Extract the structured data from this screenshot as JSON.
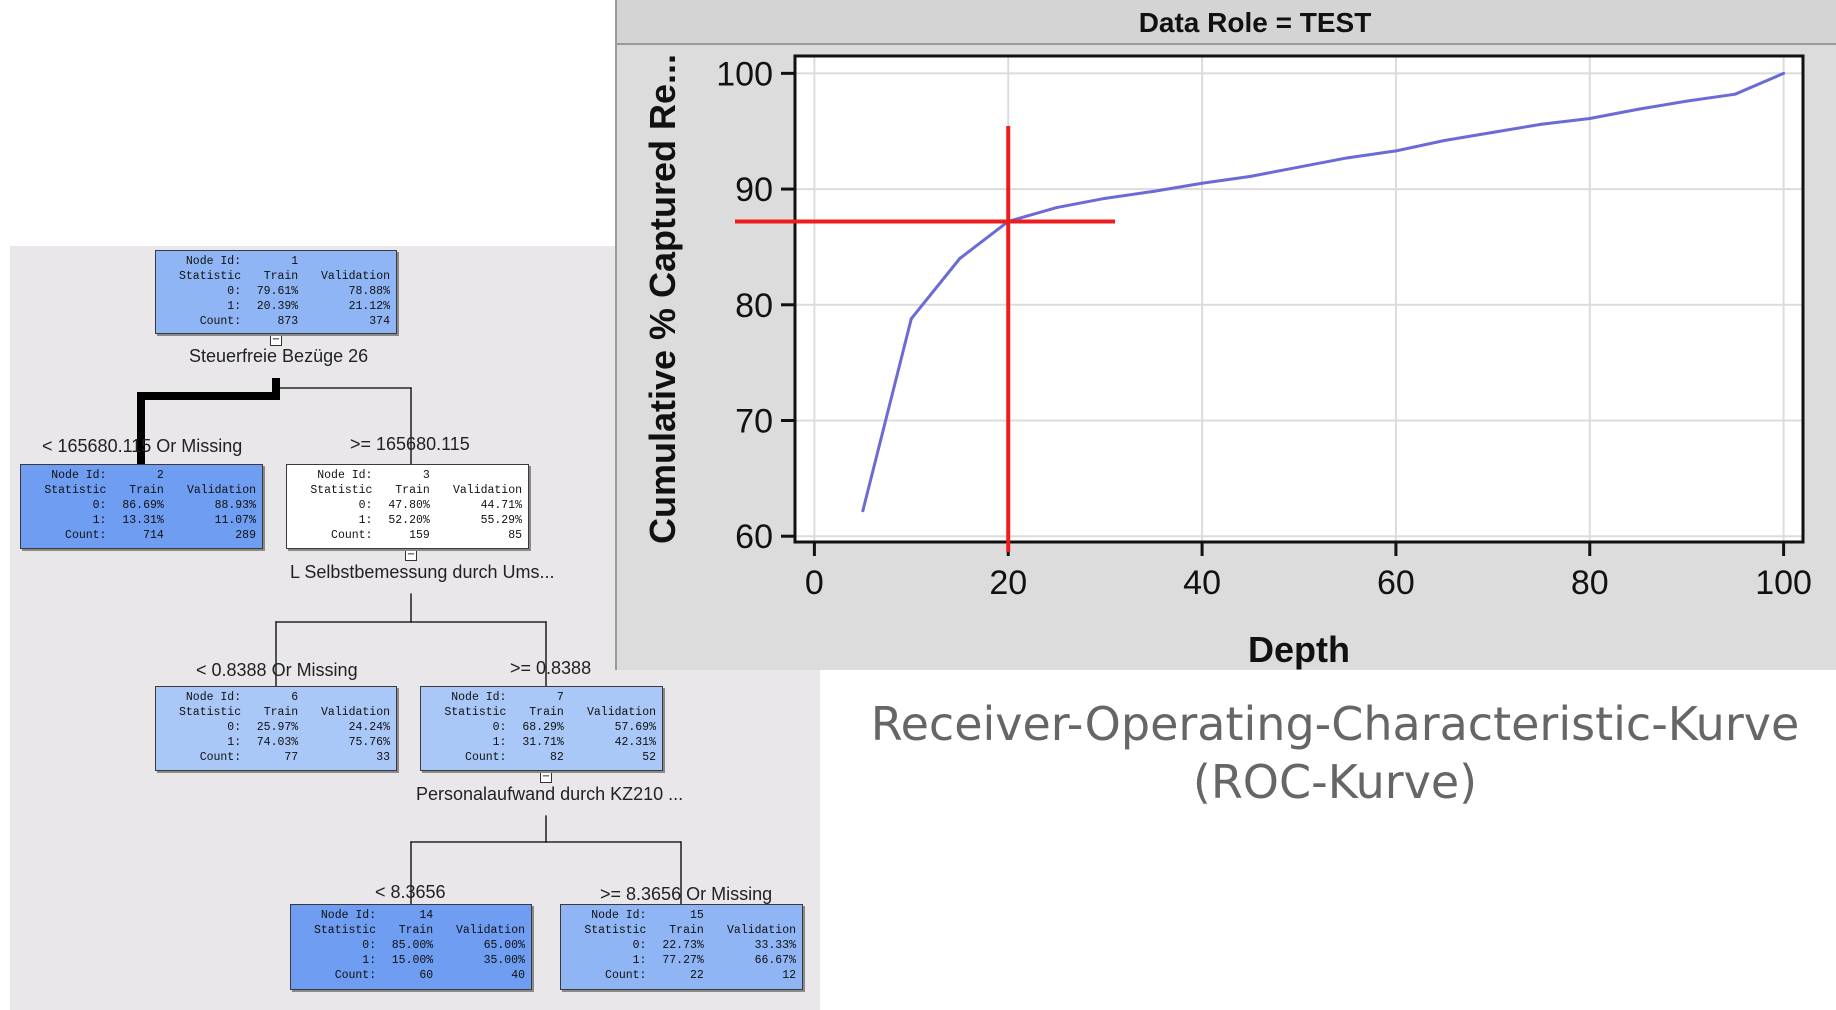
{
  "tree": {
    "nodes": [
      {
        "id": "1",
        "rows": [
          [
            "Node Id:",
            "1",
            ""
          ],
          [
            "Statistic",
            "Train",
            "Validation"
          ],
          [
            "0:",
            "79.61%",
            "78.88%"
          ],
          [
            "1:",
            "20.39%",
            "21.12%"
          ],
          [
            "Count:",
            "873",
            "374"
          ]
        ]
      },
      {
        "id": "2",
        "rows": [
          [
            "Node Id:",
            "2",
            ""
          ],
          [
            "Statistic",
            "Train",
            "Validation"
          ],
          [
            "0:",
            "86.69%",
            "88.93%"
          ],
          [
            "1:",
            "13.31%",
            "11.07%"
          ],
          [
            "Count:",
            "714",
            "289"
          ]
        ]
      },
      {
        "id": "3",
        "rows": [
          [
            "Node Id:",
            "3",
            ""
          ],
          [
            "Statistic",
            "Train",
            "Validation"
          ],
          [
            "0:",
            "47.80%",
            "44.71%"
          ],
          [
            "1:",
            "52.20%",
            "55.29%"
          ],
          [
            "Count:",
            "159",
            "85"
          ]
        ]
      },
      {
        "id": "6",
        "rows": [
          [
            "Node Id:",
            "6",
            ""
          ],
          [
            "Statistic",
            "Train",
            "Validation"
          ],
          [
            "0:",
            "25.97%",
            "24.24%"
          ],
          [
            "1:",
            "74.03%",
            "75.76%"
          ],
          [
            "Count:",
            "77",
            "33"
          ]
        ]
      },
      {
        "id": "7",
        "rows": [
          [
            "Node Id:",
            "7",
            ""
          ],
          [
            "Statistic",
            "Train",
            "Validation"
          ],
          [
            "0:",
            "68.29%",
            "57.69%"
          ],
          [
            "1:",
            "31.71%",
            "42.31%"
          ],
          [
            "Count:",
            "82",
            "52"
          ]
        ]
      },
      {
        "id": "14",
        "rows": [
          [
            "Node Id:",
            "14",
            ""
          ],
          [
            "Statistic",
            "Train",
            "Validation"
          ],
          [
            "0:",
            "85.00%",
            "65.00%"
          ],
          [
            "1:",
            "15.00%",
            "35.00%"
          ],
          [
            "Count:",
            "60",
            "40"
          ]
        ]
      },
      {
        "id": "15",
        "rows": [
          [
            "Node Id:",
            "15",
            ""
          ],
          [
            "Statistic",
            "Train",
            "Validation"
          ],
          [
            "0:",
            "22.73%",
            "33.33%"
          ],
          [
            "1:",
            "77.27%",
            "66.67%"
          ],
          [
            "Count:",
            "22",
            "12"
          ]
        ]
      }
    ],
    "split_labels": [
      "Steuerfreie Bezüge 26",
      "L Selbstbemessung durch Ums...",
      "Personalaufwand durch KZ210 ..."
    ],
    "branch_labels": [
      "< 165680.115 Or Missing",
      ">= 165680.115",
      "< 0.8388 Or Missing",
      ">= 0.8388",
      "< 8.3656",
      ">= 8.3656 Or Missing"
    ],
    "toggle_symbol": "−",
    "colors": {
      "node_dark": "#6e9df2",
      "node_mid": "#90b5f5",
      "node_light": "#aac8f7",
      "node_white": "#ffffff"
    }
  },
  "chart_data": {
    "type": "line",
    "title": "Data Role = TEST",
    "xlabel": "Depth",
    "ylabel": "Cumulative % Captured Re...",
    "xlim": [
      -2,
      102
    ],
    "ylim": [
      59.5,
      101.5
    ],
    "xticks": [
      0,
      20,
      40,
      60,
      80,
      100
    ],
    "yticks": [
      60,
      70,
      80,
      90,
      100
    ],
    "grid": true,
    "series": [
      {
        "color": "#6b6bd8",
        "x": [
          5,
          10,
          15,
          20,
          25,
          30,
          35,
          40,
          45,
          50,
          55,
          60,
          65,
          70,
          75,
          80,
          85,
          90,
          95,
          100
        ],
        "y": [
          62.2,
          78.8,
          84,
          87.2,
          88.4,
          89.2,
          89.8,
          90.5,
          91.1,
          91.9,
          92.7,
          93.3,
          94.2,
          94.9,
          95.6,
          96.1,
          96.9,
          97.6,
          98.2,
          100
        ]
      }
    ],
    "marker": {
      "x": 20,
      "y": 87.2,
      "color": "#ee1c1c"
    }
  },
  "caption": {
    "line1": "Receiver-Operating-Characteristic-Kurve",
    "line2": "(ROC-Kurve)"
  }
}
